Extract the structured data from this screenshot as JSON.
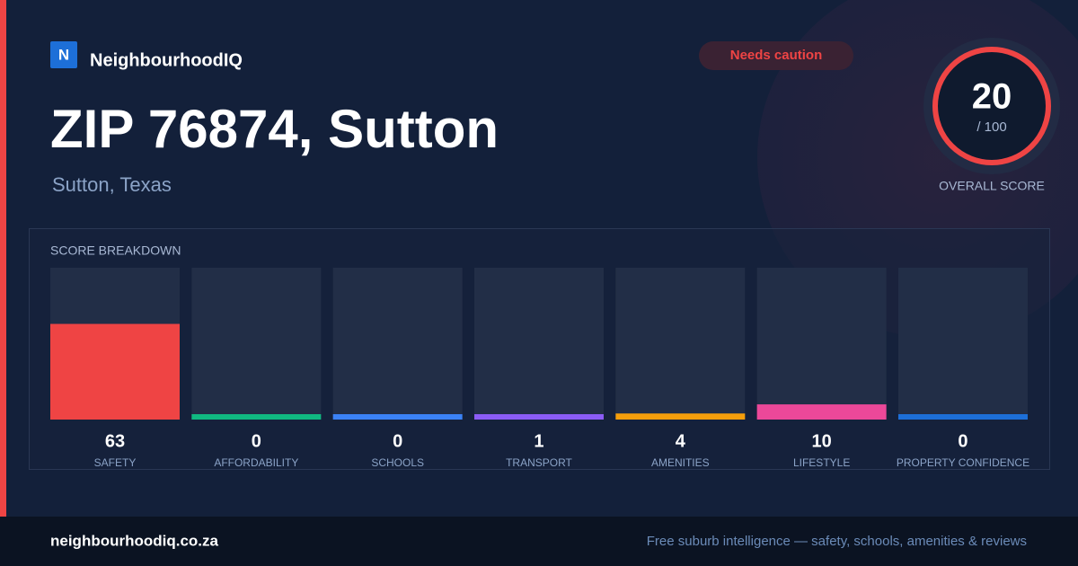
{
  "header": {
    "logo": "N",
    "brand": "NeighbourhoodIQ",
    "badge": "Needs caution",
    "title": "ZIP 76874, Sutton",
    "subtitle": "Sutton, Texas"
  },
  "overall": {
    "score": 20,
    "suffix": "/ 100",
    "label": "OVERALL SCORE",
    "ylim": [
      0,
      100
    ]
  },
  "chart_data": {
    "type": "bar",
    "title": "SCORE BREAKDOWN",
    "categories": [
      "SAFETY",
      "AFFORDABILITY",
      "SCHOOLS",
      "TRANSPORT",
      "AMENITIES",
      "LIFESTYLE",
      "PROPERTY CONFIDENCE"
    ],
    "values": [
      63,
      0,
      0,
      1,
      4,
      10,
      0
    ],
    "colors": [
      "#ef4444",
      "#10b981",
      "#3b82f6",
      "#8b5cf6",
      "#f59e0b",
      "#ec4899",
      "#1d6fd8"
    ],
    "ylim": [
      0,
      100
    ]
  },
  "footer": {
    "site": "neighbourhoodiq.co.za",
    "tagline": "Free suburb intelligence — safety, schools, amenities & reviews"
  }
}
